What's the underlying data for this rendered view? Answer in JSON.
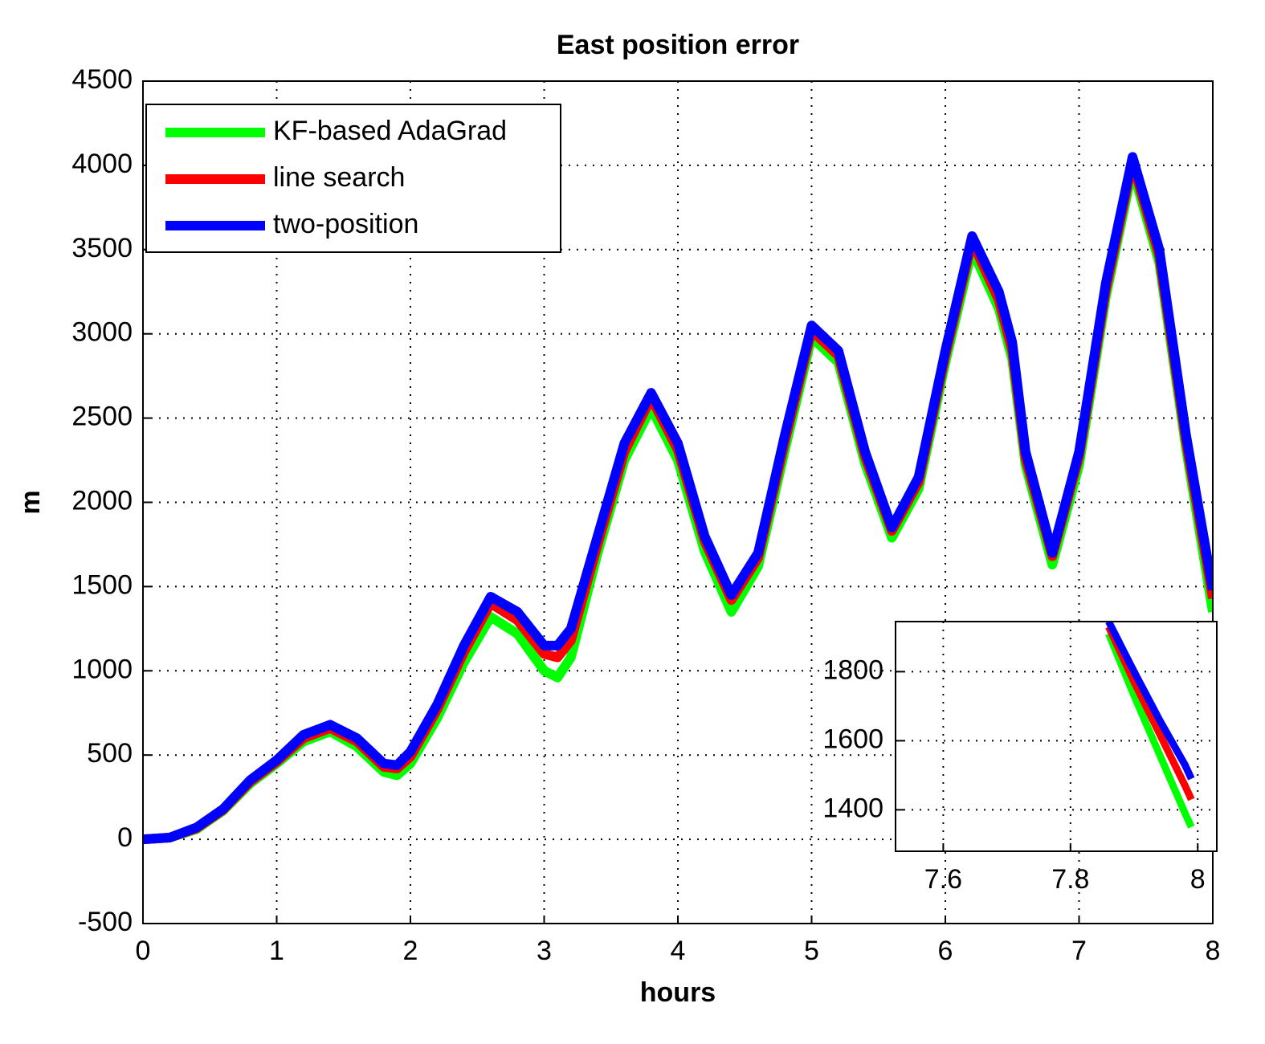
{
  "chart_data": [
    {
      "type": "line",
      "title": "East position error",
      "xlabel": "hours",
      "ylabel": "m",
      "x": [
        0,
        0.2,
        0.4,
        0.6,
        0.8,
        1.0,
        1.2,
        1.4,
        1.6,
        1.8,
        1.9,
        2.0,
        2.2,
        2.4,
        2.6,
        2.8,
        3.0,
        3.1,
        3.2,
        3.4,
        3.6,
        3.8,
        4.0,
        4.2,
        4.4,
        4.6,
        4.8,
        5.0,
        5.2,
        5.4,
        5.6,
        5.8,
        6.0,
        6.2,
        6.4,
        6.5,
        6.6,
        6.8,
        7.0,
        7.2,
        7.4,
        7.6,
        7.8,
        8.0
      ],
      "series": [
        {
          "name": "KF-based AdaGrad",
          "color": "#00ff00",
          "values": [
            0,
            10,
            60,
            170,
            330,
            450,
            580,
            640,
            550,
            400,
            380,
            450,
            720,
            1050,
            1320,
            1220,
            1000,
            960,
            1080,
            1700,
            2250,
            2560,
            2250,
            1710,
            1350,
            1620,
            2310,
            2980,
            2830,
            2230,
            1790,
            2080,
            2830,
            3500,
            3150,
            2850,
            2220,
            1630,
            2220,
            3220,
            3980,
            3420,
            2320,
            1350
          ]
        },
        {
          "name": "line search",
          "color": "#ff0000",
          "values": [
            0,
            10,
            65,
            175,
            340,
            460,
            600,
            660,
            580,
            430,
            420,
            490,
            770,
            1110,
            1400,
            1300,
            1100,
            1080,
            1180,
            1750,
            2300,
            2620,
            2310,
            1770,
            1420,
            1670,
            2360,
            3020,
            2870,
            2270,
            1830,
            2120,
            2870,
            3550,
            3200,
            2900,
            2260,
            1680,
            2270,
            3260,
            4020,
            3460,
            2360,
            1430
          ]
        },
        {
          "name": "two-position",
          "color": "#0000ff",
          "values": [
            0,
            10,
            70,
            180,
            350,
            470,
            620,
            680,
            600,
            450,
            440,
            520,
            800,
            1150,
            1440,
            1350,
            1150,
            1150,
            1250,
            1800,
            2350,
            2650,
            2350,
            1800,
            1450,
            1700,
            2400,
            3050,
            2900,
            2300,
            1850,
            2150,
            2900,
            3580,
            3250,
            2950,
            2300,
            1700,
            2300,
            3300,
            4050,
            3500,
            2400,
            1480
          ]
        }
      ],
      "xlim": [
        0,
        8
      ],
      "ylim": [
        -500,
        4500
      ],
      "xticks": [
        0,
        1,
        2,
        3,
        4,
        5,
        6,
        7,
        8
      ],
      "yticks": [
        -500,
        0,
        500,
        1000,
        1500,
        2000,
        2500,
        3000,
        3500,
        4000,
        4500
      ],
      "grid": true,
      "legend": "upper left"
    },
    {
      "type": "line",
      "x": [
        7.86,
        7.9,
        7.94,
        7.98,
        7.99
      ],
      "series": [
        {
          "color": "#00ff00",
          "values": [
            1910,
            1730,
            1560,
            1390,
            1350
          ]
        },
        {
          "color": "#ff0000",
          "values": [
            1930,
            1770,
            1620,
            1470,
            1430
          ]
        },
        {
          "color": "#0000ff",
          "values": [
            1945,
            1800,
            1660,
            1530,
            1490
          ]
        }
      ],
      "xlim": [
        7.525,
        8.03
      ],
      "ylim": [
        1280,
        1945
      ],
      "xticks": [
        7.6,
        7.8,
        8
      ],
      "yticks": [
        1400,
        1600,
        1800
      ],
      "grid": true
    }
  ]
}
